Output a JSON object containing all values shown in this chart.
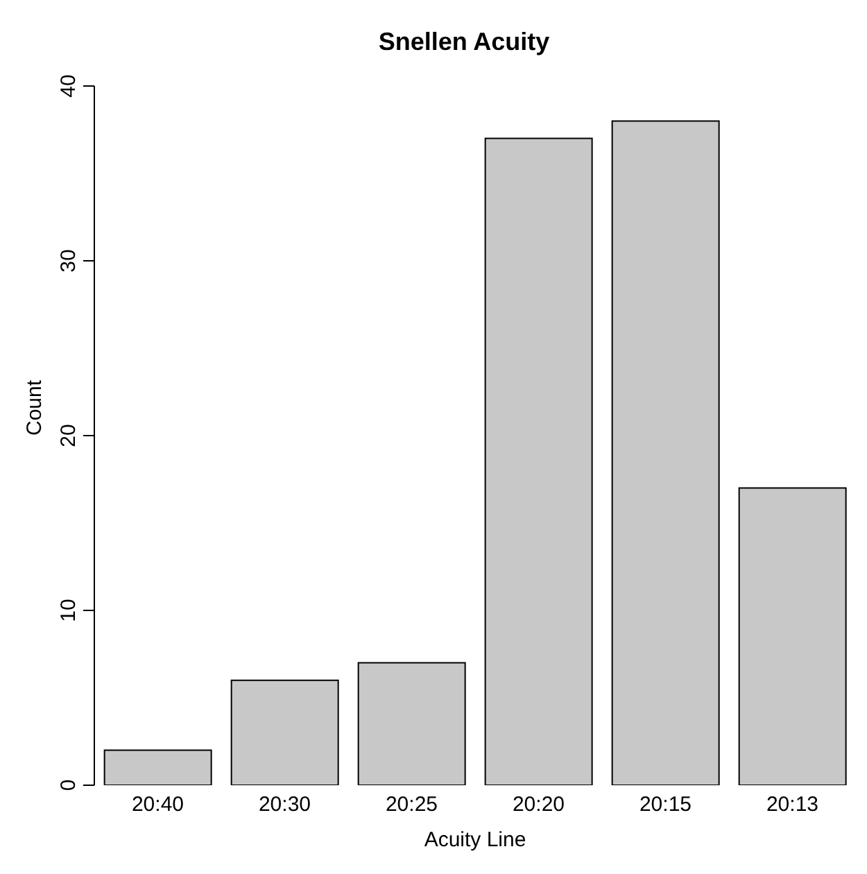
{
  "chart_data": {
    "type": "bar",
    "title": "Snellen Acuity",
    "xlabel": "Acuity Line",
    "ylabel": "Count",
    "categories": [
      "20:40",
      "20:30",
      "20:25",
      "20:20",
      "20:15",
      "20:13"
    ],
    "values": [
      2,
      6,
      7,
      37,
      38,
      17
    ],
    "color": "#c8c8c8",
    "ylim": [
      0,
      40
    ],
    "yticks": [
      0,
      10,
      20,
      30,
      40
    ]
  }
}
